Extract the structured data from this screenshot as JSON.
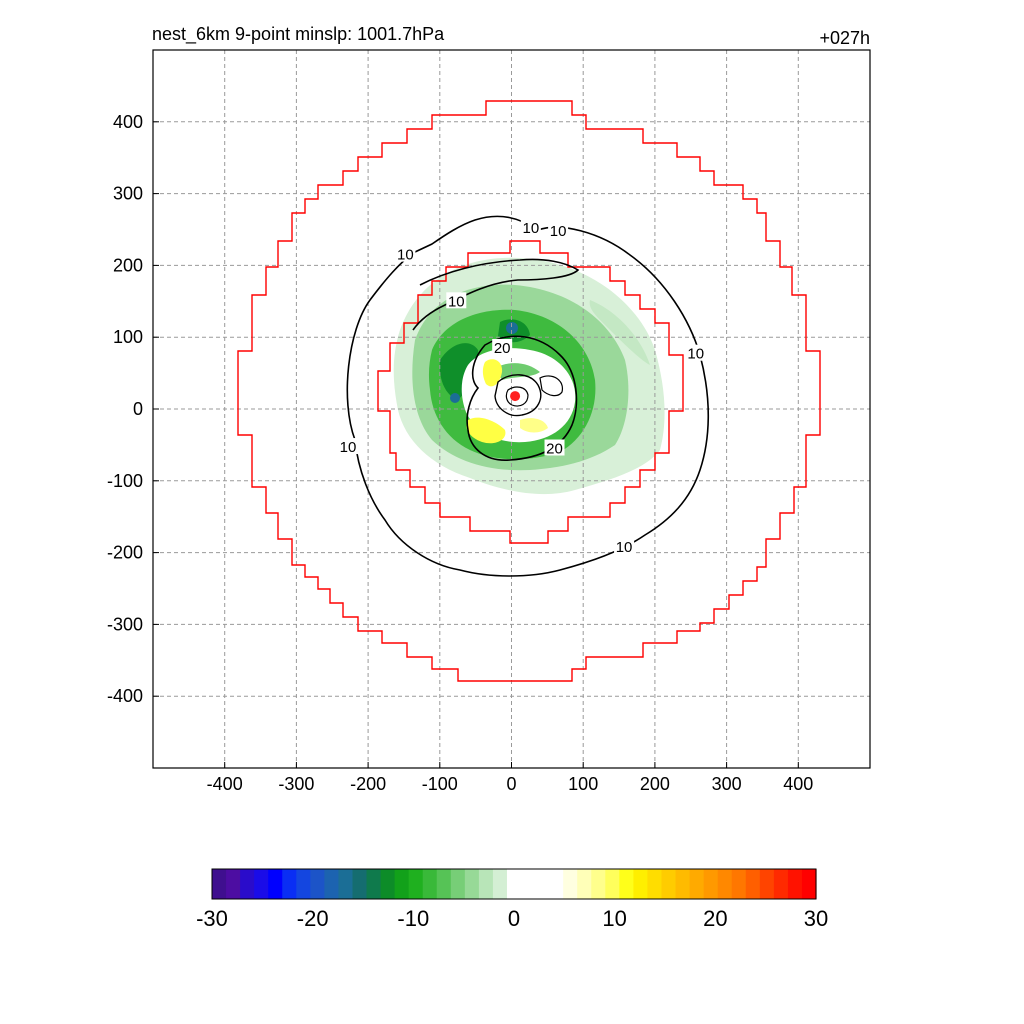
{
  "chart_data": {
    "type": "heatmap",
    "title": "nest_6km  9-point minslp: 1001.7hPa",
    "subtitle": "+027h",
    "xlim": [
      -500,
      500
    ],
    "ylim": [
      -500,
      500
    ],
    "x_ticks": [
      -400,
      -300,
      -200,
      -100,
      0,
      100,
      200,
      300,
      400
    ],
    "y_ticks": [
      400,
      300,
      200,
      100,
      0,
      -100,
      -200,
      -300,
      -400
    ],
    "grid": true,
    "storm_center": [
      5,
      18
    ],
    "contours": [
      {
        "level": 10,
        "label": "10"
      },
      {
        "level": 20,
        "label": "20"
      }
    ],
    "contour_labels": [
      {
        "text": "10",
        "x": -148,
        "y": 215
      },
      {
        "text": "10",
        "x": -77,
        "y": 150
      },
      {
        "text": "10",
        "x": 27,
        "y": 252
      },
      {
        "text": "10",
        "x": 65,
        "y": 248
      },
      {
        "text": "10",
        "x": 257,
        "y": 77
      },
      {
        "text": "10",
        "x": -228,
        "y": -53
      },
      {
        "text": "10",
        "x": 157,
        "y": -192
      },
      {
        "text": "20",
        "x": -13,
        "y": 85
      },
      {
        "text": "20",
        "x": 60,
        "y": -55
      }
    ],
    "colorbar": {
      "min": -30,
      "max": 30,
      "ticks": [
        -30,
        -20,
        -10,
        0,
        10,
        20,
        30
      ],
      "colors": [
        "#3f0f8f",
        "#4d0da2",
        "#2a0ccb",
        "#1a0ce8",
        "#0000ff",
        "#0a2ef4",
        "#1446e0",
        "#1c54c8",
        "#1c63b0",
        "#1b6e96",
        "#156d70",
        "#0f7a4c",
        "#0d8c28",
        "#12a11a",
        "#1fb01f",
        "#39b939",
        "#56c356",
        "#77ce77",
        "#97d997",
        "#b8e5b8",
        "#d4efd4",
        "#ffffff",
        "#ffffff",
        "#ffffff",
        "#ffffff",
        "#ffffe0",
        "#ffffb8",
        "#ffff8c",
        "#ffff5c",
        "#ffff1a",
        "#ffef00",
        "#ffdd00",
        "#ffcc00",
        "#ffbb00",
        "#ffaa00",
        "#ff9900",
        "#ff8800",
        "#ff7700",
        "#ff5f00",
        "#ff4400",
        "#ff2a00",
        "#ff1200",
        "#ff0000"
      ]
    }
  }
}
